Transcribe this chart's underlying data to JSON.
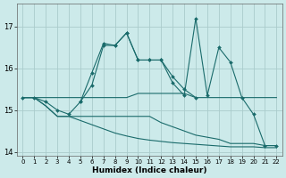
{
  "xlabel": "Humidex (Indice chaleur)",
  "bg_color": "#cceaea",
  "grid_color": "#aacccc",
  "line_color": "#1a6b6b",
  "xlim": [
    -0.5,
    22.5
  ],
  "ylim": [
    13.9,
    17.55
  ],
  "yticks": [
    14,
    15,
    16,
    17
  ],
  "xticks": [
    0,
    1,
    2,
    3,
    4,
    5,
    6,
    7,
    8,
    9,
    10,
    11,
    12,
    13,
    14,
    15,
    16,
    17,
    18,
    19,
    20,
    21,
    22
  ],
  "series": [
    {
      "x": [
        0,
        1,
        2,
        3,
        4,
        5,
        6,
        7,
        8,
        9,
        10,
        11,
        12,
        13,
        14,
        15,
        16,
        17,
        18,
        19,
        20,
        21,
        22
      ],
      "y": [
        15.3,
        15.3,
        15.3,
        15.3,
        15.3,
        15.3,
        15.3,
        15.3,
        15.3,
        15.3,
        15.4,
        15.4,
        15.4,
        15.4,
        15.4,
        15.3,
        15.3,
        15.3,
        15.3,
        15.3,
        15.3,
        15.3,
        15.3
      ],
      "marker": false
    },
    {
      "x": [
        0,
        1,
        2,
        3,
        4,
        5,
        6,
        7,
        8,
        9,
        10,
        11,
        12,
        13,
        14,
        15
      ],
      "y": [
        15.3,
        15.3,
        15.2,
        15.0,
        14.9,
        15.2,
        15.6,
        16.55,
        16.55,
        16.85,
        16.2,
        16.2,
        16.2,
        15.8,
        15.5,
        15.3
      ],
      "marker": true
    },
    {
      "x": [
        0,
        1,
        2,
        3,
        4,
        5,
        6,
        7,
        8,
        9,
        10,
        11,
        12,
        13,
        14,
        15,
        16,
        17,
        18,
        19,
        20,
        21,
        22
      ],
      "y": [
        15.3,
        15.3,
        15.1,
        14.85,
        14.85,
        14.85,
        14.85,
        14.85,
        14.85,
        14.85,
        14.85,
        14.85,
        14.7,
        14.6,
        14.5,
        14.4,
        14.35,
        14.3,
        14.2,
        14.2,
        14.2,
        14.15,
        14.15
      ],
      "marker": false
    },
    {
      "x": [
        0,
        1,
        2,
        3,
        4,
        5,
        6,
        7,
        8,
        9,
        10,
        11,
        12,
        13,
        14,
        15,
        16,
        17,
        18,
        19,
        20,
        21,
        22
      ],
      "y": [
        15.3,
        15.3,
        15.1,
        14.85,
        14.85,
        14.75,
        14.65,
        14.55,
        14.45,
        14.38,
        14.32,
        14.28,
        14.25,
        14.22,
        14.2,
        14.18,
        14.16,
        14.14,
        14.12,
        14.12,
        14.12,
        14.1,
        14.1
      ],
      "marker": false
    },
    {
      "x": [
        5,
        6,
        7,
        8,
        9,
        10,
        11,
        12,
        13,
        14,
        15,
        16,
        17,
        18,
        19,
        20,
        21,
        22
      ],
      "y": [
        15.2,
        15.9,
        16.6,
        16.55,
        16.85,
        16.2,
        16.2,
        16.2,
        15.65,
        15.35,
        17.2,
        15.35,
        16.5,
        16.15,
        15.3,
        14.9,
        14.15,
        14.15
      ],
      "marker": true
    }
  ]
}
